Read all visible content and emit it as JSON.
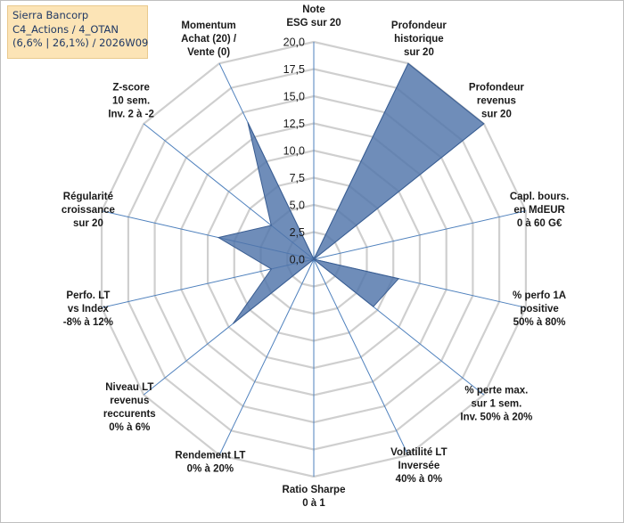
{
  "info": {
    "line1": "Sierra Bancorp",
    "line2": "C4_Actions / 4_OTAN",
    "line3": "(6,6% | 26,1%) / 2026W09"
  },
  "chart_data": {
    "type": "radar",
    "ylim": [
      0,
      20
    ],
    "tick_labels": [
      "0,0",
      "2,5",
      "5,0",
      "7,5",
      "10,0",
      "12,5",
      "15,0",
      "17,5",
      "20,0"
    ],
    "categories": [
      [
        "Note",
        "ESG sur 20"
      ],
      [
        "Profondeur",
        "historique",
        "sur 20"
      ],
      [
        "Profondeur",
        "revenus",
        "sur 20"
      ],
      [
        "Capl. bours.",
        "en MdEUR",
        "0 à 60 G€"
      ],
      [
        "% perfo 1A",
        "positive",
        "50% à 80%"
      ],
      [
        "% perte max.",
        "sur 1 sem.",
        "Inv. 50% à 20%"
      ],
      [
        "Volatilité LT",
        "Inversée",
        "40% à 0%"
      ],
      [
        "Ratio Sharpe",
        "0 à 1"
      ],
      [
        "Rendement LT",
        "0% à 20%"
      ],
      [
        "Niveau LT",
        "revenus",
        "reccurents",
        "0% à 6%"
      ],
      [
        "Perfo. LT",
        "vs Index",
        "-8% à 12%"
      ],
      [
        "Régularité",
        "croissance",
        "sur 20"
      ],
      [
        "Z-score",
        "10 sem.",
        "Inv. 2 à -2"
      ],
      [
        "Momentum",
        "Achat (20) /",
        "Vente (0)"
      ]
    ],
    "series": [
      {
        "name": "Sierra Bancorp",
        "values": [
          0,
          20,
          20,
          0,
          8,
          7,
          0,
          0,
          0,
          9.5,
          4,
          9,
          5,
          14
        ],
        "color": "#4f74aa"
      }
    ]
  }
}
